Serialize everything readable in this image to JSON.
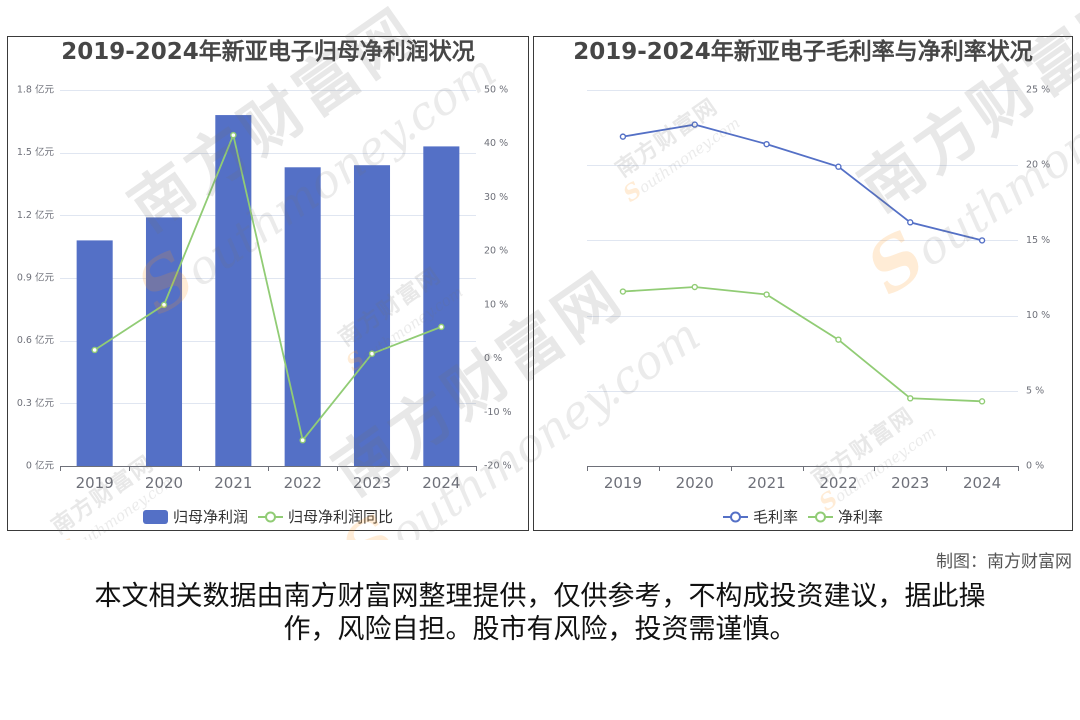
{
  "page": {
    "credit": "制图：南方财富网",
    "disclaimer": "本文相关数据由南方财富网整理提供，仅供参考，不构成投资建议，据此操作，风险自担。股市有风险，投资需谨慎。"
  },
  "watermark": {
    "brand": "南方财富网",
    "domain": "Southmoney.com"
  },
  "chart_data": [
    {
      "type": "bar",
      "title": "2019-2024年新亚电子归母净利润状况",
      "categories": [
        "2019",
        "2020",
        "2021",
        "2022",
        "2023",
        "2024"
      ],
      "series": [
        {
          "name": "归母净利润",
          "type": "bar",
          "axis": "left",
          "values": [
            1.08,
            1.19,
            1.68,
            1.43,
            1.44,
            1.53
          ],
          "color": "#5470c6"
        },
        {
          "name": "归母净利润同比",
          "type": "line",
          "axis": "right",
          "values": [
            1.6,
            10.0,
            41.6,
            -15.2,
            0.9,
            5.9
          ],
          "color": "#91cc75"
        }
      ],
      "y_left": {
        "ylim": [
          0,
          1.8
        ],
        "ticks": [
          0,
          0.3,
          0.6,
          0.9,
          1.2,
          1.5,
          1.8
        ],
        "tick_labels": [
          "0 亿元",
          "0.3 亿元",
          "0.6 亿元",
          "0.9 亿元",
          "1.2 亿元",
          "1.5 亿元",
          "1.8 亿元"
        ]
      },
      "y_right": {
        "ylim": [
          -20,
          50
        ],
        "ticks": [
          -20,
          -10,
          0,
          10,
          20,
          30,
          40,
          50
        ],
        "tick_labels": [
          "-20 %",
          "-10 %",
          "0 %",
          "10 %",
          "20 %",
          "30 %",
          "40 %",
          "50 %"
        ]
      },
      "grid": true,
      "legend_position": "bottom"
    },
    {
      "type": "line",
      "title": "2019-2024年新亚电子毛利率与净利率状况",
      "categories": [
        "2019",
        "2020",
        "2021",
        "2022",
        "2023",
        "2024"
      ],
      "series": [
        {
          "name": "毛利率",
          "values": [
            21.9,
            22.7,
            21.4,
            19.9,
            16.2,
            15.0
          ],
          "color": "#5470c6"
        },
        {
          "name": "净利率",
          "values": [
            11.6,
            11.9,
            11.4,
            8.4,
            4.5,
            4.3
          ],
          "color": "#91cc75"
        }
      ],
      "y_right": {
        "ylim": [
          0,
          25
        ],
        "ticks": [
          0,
          5,
          10,
          15,
          20,
          25
        ],
        "tick_labels": [
          "0 %",
          "5 %",
          "10 %",
          "15 %",
          "20 %",
          "25 %"
        ]
      },
      "grid": true,
      "legend_position": "bottom"
    }
  ]
}
